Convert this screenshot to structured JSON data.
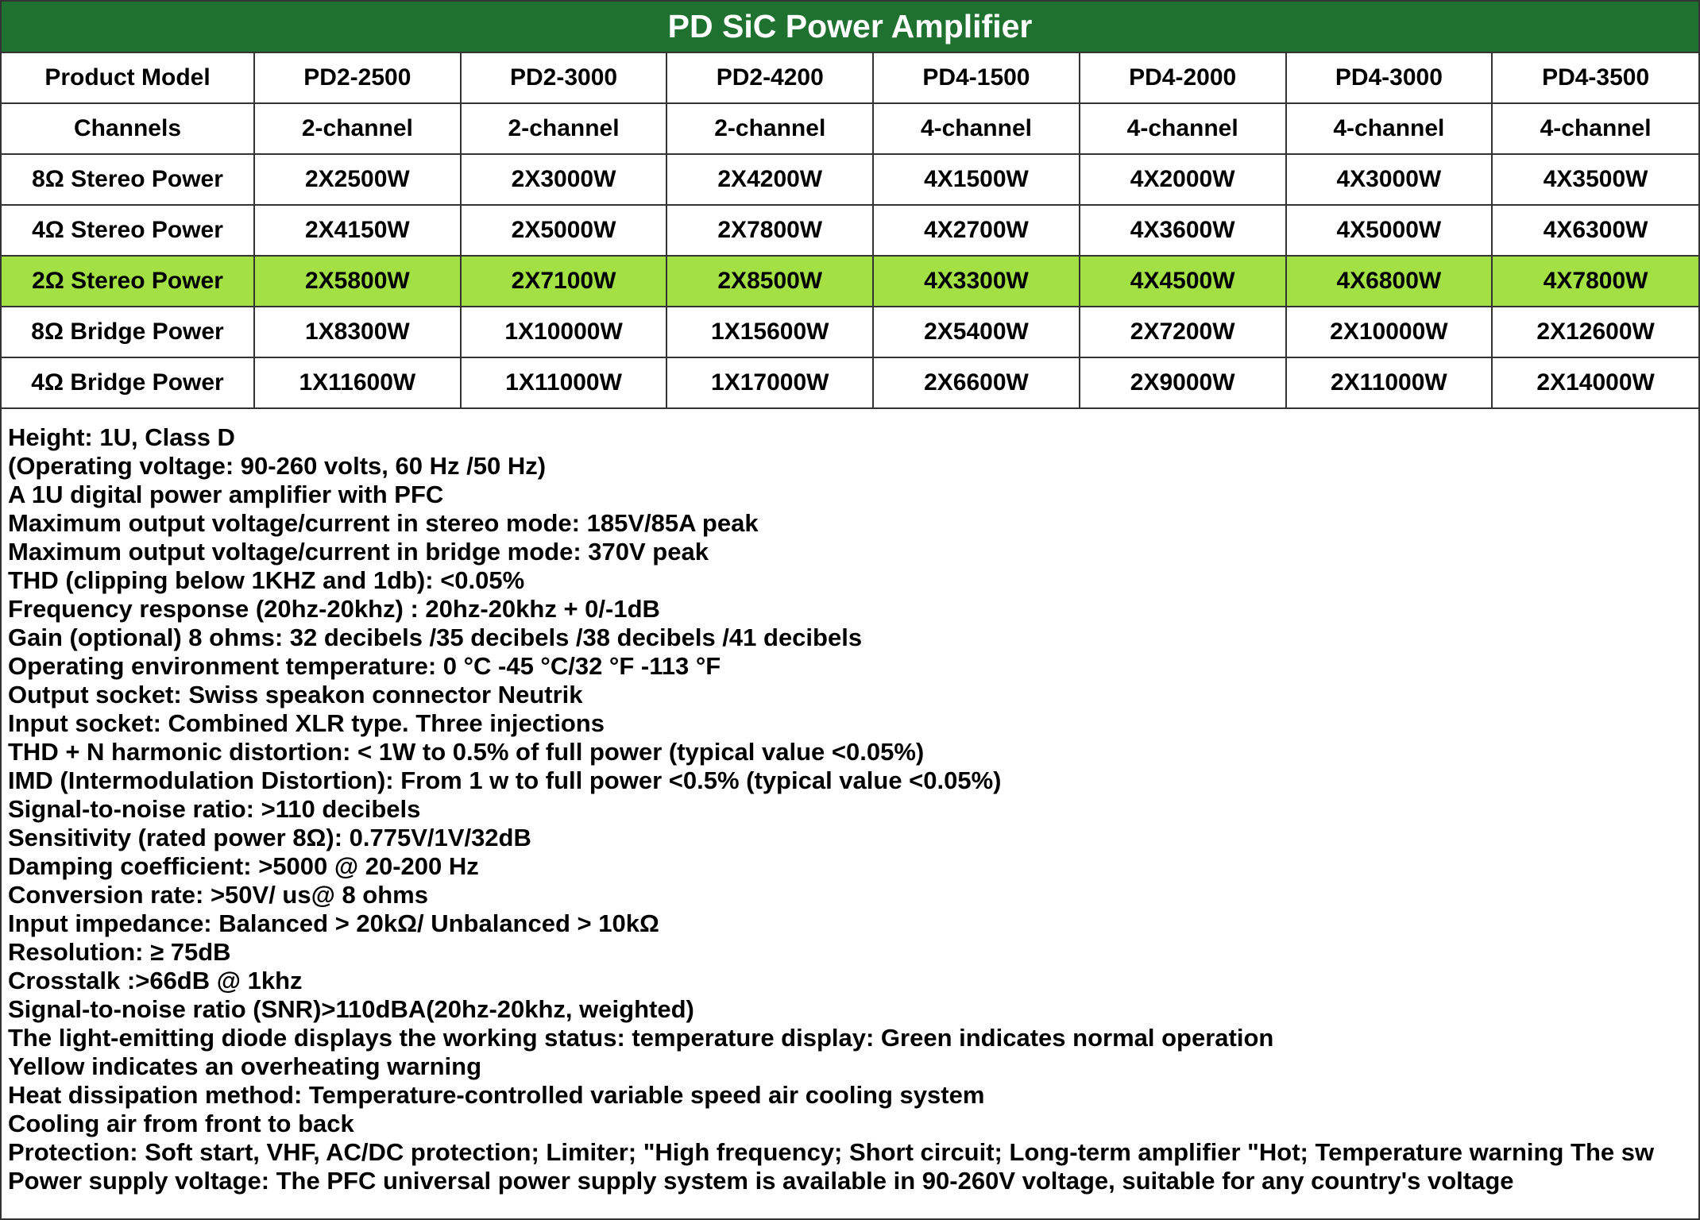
{
  "title": "PD SiC Power Amplifier",
  "colors": {
    "header_bg": "#1f7130",
    "highlight_row": "#a3e043"
  },
  "table": {
    "rows": [
      {
        "label": "Product Model",
        "values": [
          "PD2-2500",
          "PD2-3000",
          "PD2-4200",
          "PD4-1500",
          "PD4-2000",
          "PD4-3000",
          "PD4-3500"
        ]
      },
      {
        "label": "Channels",
        "values": [
          "2-channel",
          "2-channel",
          "2-channel",
          "4-channel",
          "4-channel",
          "4-channel",
          "4-channel"
        ]
      },
      {
        "label": "8Ω Stereo Power",
        "values": [
          "2X2500W",
          "2X3000W",
          "2X4200W",
          "4X1500W",
          "4X2000W",
          "4X3000W",
          "4X3500W"
        ]
      },
      {
        "label": "4Ω Stereo Power",
        "values": [
          "2X4150W",
          "2X5000W",
          "2X7800W",
          "4X2700W",
          "4X3600W",
          "4X5000W",
          "4X6300W"
        ]
      },
      {
        "label": "2Ω Stereo Power",
        "highlighted": true,
        "values": [
          "2X5800W",
          "2X7100W",
          "2X8500W",
          "4X3300W",
          "4X4500W",
          "4X6800W",
          "4X7800W"
        ]
      },
      {
        "label": "8Ω Bridge Power",
        "values": [
          "1X8300W",
          "1X10000W",
          "1X15600W",
          "2X5400W",
          "2X7200W",
          "2X10000W",
          "2X12600W"
        ]
      },
      {
        "label": "4Ω Bridge Power",
        "values": [
          "1X11600W",
          "1X11000W",
          "1X17000W",
          "2X6600W",
          "2X9000W",
          "2X11000W",
          "2X14000W"
        ]
      }
    ]
  },
  "specs": [
    "Height: 1U, Class D",
    "(Operating voltage: 90-260 volts, 60 Hz /50 Hz)",
    "A 1U digital power amplifier with PFC",
    "Maximum output voltage/current in stereo mode: 185V/85A peak",
    "Maximum output voltage/current in bridge mode: 370V peak",
    "THD (clipping below 1KHZ and 1db): <0.05%",
    "Frequency response (20hz-20khz) : 20hz-20khz + 0/-1dB",
    "Gain (optional) 8 ohms: 32 decibels /35 decibels /38 decibels /41 decibels",
    "Operating environment temperature: 0 °C -45 °C/32 °F -113 °F",
    "Output socket: Swiss speakon connector Neutrik",
    "Input socket: Combined XLR type. Three injections",
    "THD + N harmonic distortion: < 1W to 0.5% of full power (typical value <0.05%)",
    "IMD (Intermodulation Distortion): From 1 w to full power <0.5% (typical value <0.05%)",
    "Signal-to-noise ratio: >110 decibels",
    "Sensitivity (rated power 8Ω): 0.775V/1V/32dB",
    "Damping coefficient: >5000 @ 20-200 Hz",
    "Conversion rate: >50V/ us@ 8 ohms",
    "Input impedance: Balanced > 20kΩ/ Unbalanced > 10kΩ",
    "Resolution: ≥ 75dB",
    "Crosstalk :>66dB @ 1khz",
    "Signal-to-noise ratio (SNR)>110dBA(20hz-20khz, weighted)",
    "The light-emitting diode displays the working status: temperature display: Green indicates normal operation",
    "Yellow indicates an overheating warning",
    "Heat dissipation method: Temperature-controlled variable speed air cooling system",
    "Cooling air from front to back",
    "Protection: Soft start, VHF, AC/DC protection; Limiter; \"High frequency; Short circuit; Long-term amplifier \"Hot; Temperature warning The sw",
    "Power supply voltage: The PFC universal power supply system is available in 90-260V voltage, suitable for any country's voltage"
  ]
}
